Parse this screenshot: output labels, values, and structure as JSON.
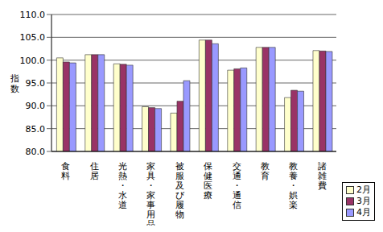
{
  "chart_data": {
    "type": "bar",
    "y_label": "指数",
    "categories": [
      "食料",
      "住居",
      "光熱・水道",
      "家具・家事用品",
      "被服及び履物",
      "保健医療",
      "交通・通信",
      "教育",
      "教養・娯楽",
      "諸雑費"
    ],
    "series": [
      {
        "name": "2月",
        "color": "#ffffcc",
        "values": [
          100.5,
          101.2,
          99.2,
          89.8,
          88.4,
          104.4,
          97.8,
          102.8,
          91.8,
          102.1
        ]
      },
      {
        "name": "3月",
        "color": "#993366",
        "values": [
          99.6,
          101.2,
          99.1,
          89.6,
          91.0,
          104.4,
          98.1,
          102.8,
          93.4,
          102.0
        ]
      },
      {
        "name": "4月",
        "color": "#9999ff",
        "values": [
          99.4,
          101.2,
          98.9,
          89.4,
          95.5,
          103.6,
          98.3,
          102.8,
          93.2,
          101.9
        ]
      }
    ],
    "ylim": [
      80,
      110
    ],
    "yticks": [
      {
        "value": 80,
        "label": "80.0"
      },
      {
        "value": 85,
        "label": "85.0"
      },
      {
        "value": 90,
        "label": "90.0"
      },
      {
        "value": 95,
        "label": "95.0"
      },
      {
        "value": 100,
        "label": "100.0"
      },
      {
        "value": 105,
        "label": "105.0"
      },
      {
        "value": 110,
        "label": "110.0"
      }
    ],
    "grid": true,
    "legend": "lower right"
  }
}
